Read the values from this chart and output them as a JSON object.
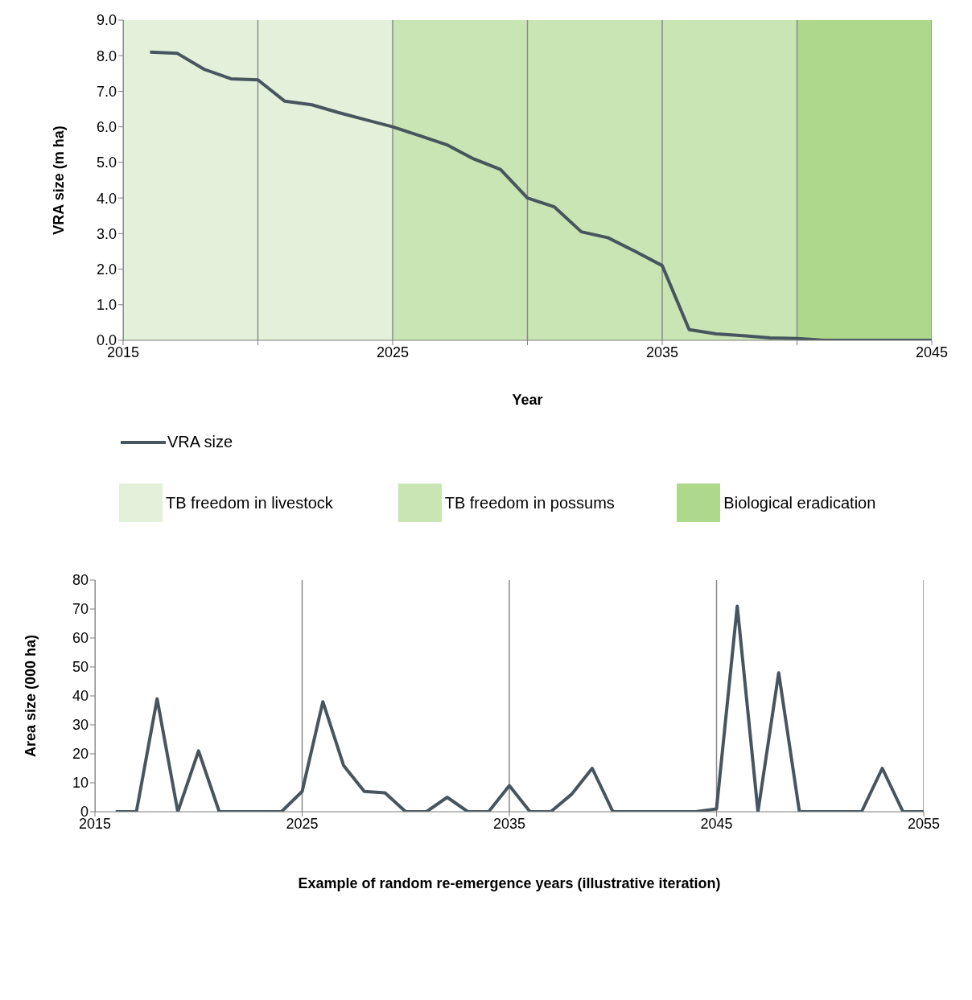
{
  "chart_data": [
    {
      "type": "line",
      "xlabel": "Year",
      "ylabel": "VRA size (m ha)",
      "x": [
        2016,
        2017,
        2018,
        2019,
        2020,
        2021,
        2022,
        2023,
        2024,
        2025,
        2026,
        2027,
        2028,
        2029,
        2030,
        2031,
        2032,
        2033,
        2034,
        2035,
        2036,
        2037,
        2038,
        2039,
        2040,
        2041,
        2042,
        2043,
        2044,
        2045
      ],
      "series": [
        {
          "name": "VRA size",
          "color": "#47555e",
          "values": [
            8.1,
            8.07,
            7.62,
            7.35,
            7.32,
            6.72,
            6.62,
            6.4,
            6.2,
            6.0,
            5.75,
            5.5,
            5.1,
            4.8,
            4.0,
            3.75,
            3.05,
            2.88,
            2.5,
            2.1,
            0.3,
            0.18,
            0.13,
            0.07,
            0.05,
            0,
            0,
            0,
            0,
            0
          ]
        }
      ],
      "xlim": [
        2015,
        2045
      ],
      "xticks": [
        2015,
        {
          "value": 2020,
          "label": null
        },
        2025,
        {
          "value": 2030,
          "label": null
        },
        2035,
        {
          "value": 2040,
          "label": null
        },
        2045
      ],
      "ylim": [
        0,
        9
      ],
      "yticks": [
        {
          "value": 0,
          "label": "0.0"
        },
        {
          "value": 1,
          "label": "1.0"
        },
        {
          "value": 2,
          "label": "2.0"
        },
        {
          "value": 3,
          "label": "3.0"
        },
        {
          "value": 4,
          "label": "4.0"
        },
        {
          "value": 5,
          "label": "5.0"
        },
        {
          "value": 6,
          "label": "6.0"
        },
        {
          "value": 7,
          "label": "7.0"
        },
        {
          "value": 8,
          "label": "8.0"
        },
        {
          "value": 9,
          "label": "9.0"
        }
      ],
      "bands": [
        {
          "axis": "x",
          "from": 2015,
          "to": 2025,
          "label": "TB freedom in livestock",
          "color": "#e3f1da"
        },
        {
          "axis": "x",
          "from": 2025,
          "to": 2040,
          "label": "TB freedom in possums",
          "color": "#cae5b4"
        },
        {
          "axis": "x",
          "from": 2040,
          "to": 2045,
          "label": "Biological eradication",
          "color": "#aed88a"
        }
      ],
      "grid": "x",
      "legend": "bottom"
    },
    {
      "type": "line",
      "xlabel": "Example of random re-emergence  years (illustrative iteration)",
      "ylabel": "Area size (000 ha)",
      "x": [
        2016,
        2017,
        2018,
        2019,
        2020,
        2021,
        2022,
        2023,
        2024,
        2025,
        2026,
        2027,
        2028,
        2029,
        2030,
        2031,
        2032,
        2033,
        2034,
        2035,
        2036,
        2037,
        2038,
        2039,
        2040,
        2041,
        2042,
        2043,
        2044,
        2045,
        2046,
        2047,
        2048,
        2049,
        2050,
        2051,
        2052,
        2053,
        2054,
        2055
      ],
      "series": [
        {
          "color": "#47555e",
          "values": [
            0,
            0,
            39,
            0,
            21,
            0,
            0,
            0,
            0,
            7,
            38,
            16,
            7,
            6.5,
            0,
            0,
            5,
            0,
            0,
            9,
            0,
            0,
            6,
            15,
            0,
            0,
            0,
            0,
            0,
            1,
            71,
            0,
            48,
            0,
            0,
            0,
            0,
            15,
            0,
            0
          ]
        }
      ],
      "xlim": [
        2015,
        2055
      ],
      "xticks": [
        2015,
        2025,
        2035,
        2045,
        2055
      ],
      "ylim": [
        0,
        80
      ],
      "yticks": [
        0,
        10,
        20,
        30,
        40,
        50,
        60,
        70,
        80
      ],
      "grid": "x"
    }
  ]
}
